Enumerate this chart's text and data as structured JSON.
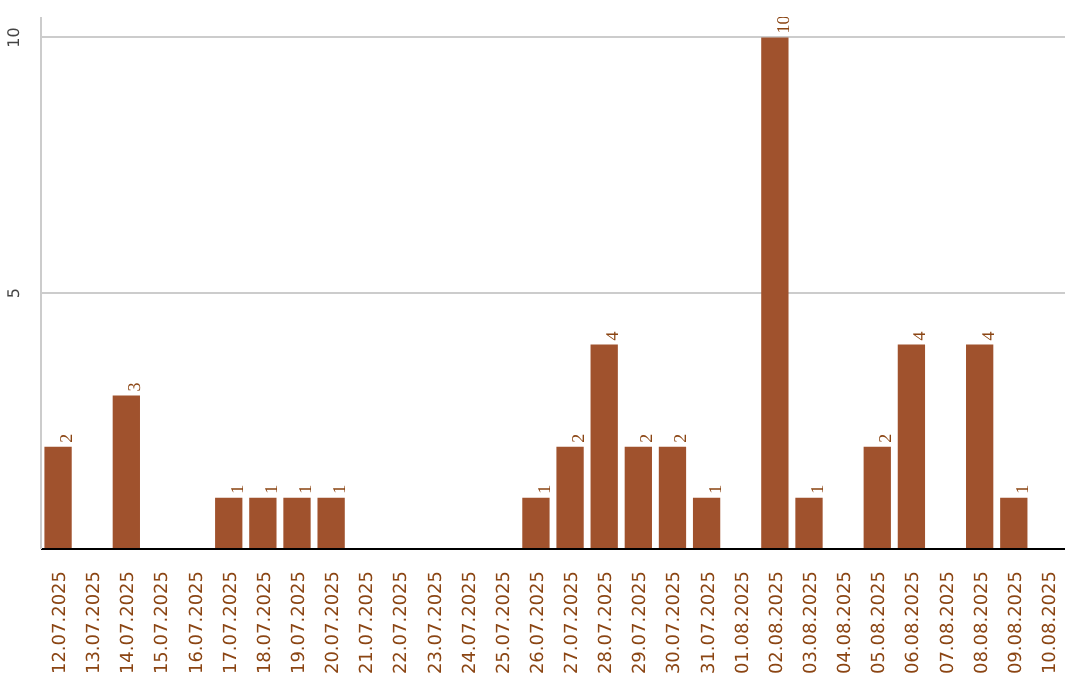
{
  "chart_data": {
    "type": "bar",
    "categories": [
      "12.07.2025",
      "13.07.2025",
      "14.07.2025",
      "15.07.2025",
      "16.07.2025",
      "17.07.2025",
      "18.07.2025",
      "19.07.2025",
      "20.07.2025",
      "21.07.2025",
      "22.07.2025",
      "23.07.2025",
      "24.07.2025",
      "25.07.2025",
      "26.07.2025",
      "27.07.2025",
      "28.07.2025",
      "29.07.2025",
      "30.07.2025",
      "31.07.2025",
      "01.08.2025",
      "02.08.2025",
      "03.08.2025",
      "04.08.2025",
      "05.08.2025",
      "06.08.2025",
      "07.08.2025",
      "08.08.2025",
      "09.08.2025",
      "10.08.2025"
    ],
    "values": [
      2,
      0,
      3,
      0,
      0,
      1,
      1,
      1,
      1,
      0,
      0,
      0,
      0,
      0,
      1,
      2,
      4,
      2,
      2,
      1,
      0,
      10,
      1,
      0,
      2,
      4,
      0,
      4,
      1,
      0
    ],
    "value_labels": [
      "2",
      null,
      "3",
      null,
      null,
      "1",
      "1",
      "1",
      "1",
      null,
      null,
      null,
      null,
      null,
      "1",
      "2",
      "4",
      "2",
      "2",
      "1",
      null,
      "10",
      "1",
      null,
      "2",
      "4",
      null,
      "4",
      "1",
      null
    ],
    "color": "#a0522d",
    "ylim": [
      0,
      10.4
    ],
    "yticks": [
      5,
      10
    ],
    "grid": "y"
  }
}
